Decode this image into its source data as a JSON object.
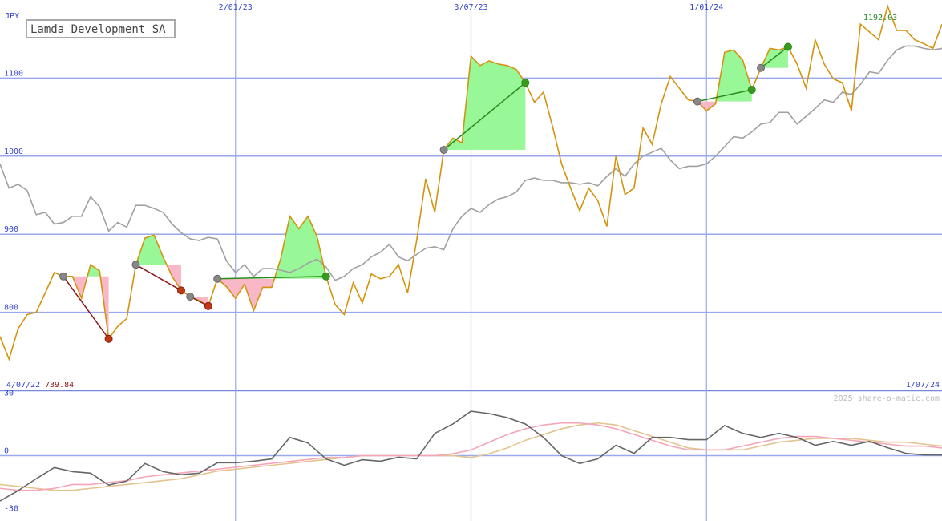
{
  "chart_data": [
    {
      "type": "line",
      "title": "Lamda Development SA",
      "y_unit": "JPY",
      "xlim": [
        0,
        104
      ],
      "xticks": [
        {
          "value": 0,
          "label": "4/07/22"
        },
        {
          "value": 26,
          "label": "2/01/23"
        },
        {
          "value": 52,
          "label": "3/07/23"
        },
        {
          "value": 78,
          "label": "1/01/24"
        },
        {
          "value": 104,
          "label": "1/07/24"
        }
      ],
      "ylim": [
        700,
        1200
      ],
      "yticks": [
        800,
        900,
        1000,
        1100
      ],
      "grid": true,
      "high": 1192.03,
      "low": 739.84,
      "series": [
        {
          "color": "#d4930f",
          "values": [
            769,
            739.84,
            779,
            797,
            800,
            825,
            851,
            846,
            846,
            818,
            861,
            853,
            766,
            782,
            792,
            861,
            895,
            899,
            871,
            846,
            828,
            820,
            815,
            808,
            843,
            833,
            818,
            836,
            802,
            832,
            832,
            869,
            923,
            907,
            923,
            897,
            846,
            810,
            797,
            838,
            812,
            849,
            843,
            846,
            861,
            825,
            892,
            971,
            928,
            1008,
            1023,
            1017,
            1128,
            1116,
            1122,
            1118,
            1116,
            1111,
            1094,
            1069,
            1082,
            1038,
            990,
            959,
            930,
            959,
            943,
            910,
            1000,
            951,
            959,
            1036,
            1015,
            1067,
            1102,
            1087,
            1072,
            1070,
            1058,
            1067,
            1133,
            1136,
            1123,
            1085,
            1113,
            1138,
            1136,
            1140,
            1118,
            1087,
            1149,
            1118,
            1099,
            1094,
            1058,
            1169,
            1159,
            1149,
            1192.03,
            1161,
            1161,
            1149,
            1144,
            1138,
            1169
          ]
        },
        {
          "color": "#a0a0a0",
          "values": [
            990,
            959,
            964,
            956,
            925,
            928,
            913,
            915,
            923,
            923,
            948,
            935,
            904,
            915,
            909,
            937,
            937,
            933,
            928,
            913,
            902,
            894,
            892,
            896,
            894,
            866,
            851,
            861,
            846,
            856,
            856,
            854,
            851,
            856,
            863,
            868,
            858,
            841,
            846,
            856,
            861,
            871,
            877,
            887,
            871,
            866,
            874,
            882,
            884,
            880,
            907,
            923,
            933,
            928,
            938,
            945,
            948,
            954,
            969,
            972,
            969,
            969,
            966,
            966,
            964,
            966,
            962,
            974,
            984,
            974,
            990,
            1000,
            1005,
            1010,
            995,
            984,
            987,
            987,
            990,
            1000,
            1012,
            1025,
            1023,
            1031,
            1041,
            1043,
            1056,
            1056,
            1041,
            1051,
            1061,
            1072,
            1069,
            1082,
            1079,
            1092,
            1108,
            1106,
            1123,
            1136,
            1141,
            1141,
            1138,
            1136,
            1138
          ]
        }
      ],
      "signals": [
        {
          "start": 7,
          "end": 12,
          "color": "#8b1a1a"
        },
        {
          "start": 15,
          "end": 20,
          "color": "#8b1a1a"
        },
        {
          "start": 21,
          "end": 23,
          "color": "#8b1a1a"
        },
        {
          "start": 24,
          "end": 36,
          "color": "#2a8a1a"
        },
        {
          "start": 49,
          "end": 58,
          "color": "#2a8a1a"
        },
        {
          "start": 77,
          "end": 83,
          "color": "#2a8a1a"
        },
        {
          "start": 84,
          "end": 87,
          "color": "#2a8a1a"
        }
      ]
    },
    {
      "type": "line",
      "source": "2025 share-o-matic.com",
      "xlim": [
        0,
        52
      ],
      "ylim": [
        -34,
        34
      ],
      "yticks": [
        -30,
        0,
        30
      ],
      "zero_line": true,
      "series": [
        {
          "color": "#666666",
          "values": [
            -23.6,
            -18.2,
            -12,
            -6.2,
            -8.3,
            -9.1,
            -15.3,
            -13.2,
            -4.1,
            -8.3,
            -9.9,
            -9.1,
            -3.7,
            -3.7,
            -2.9,
            -1.7,
            9.5,
            6.6,
            -1.7,
            -5,
            -2.1,
            -2.9,
            -0.8,
            -1.7,
            11.6,
            16.5,
            23.1,
            21.9,
            19.8,
            16.5,
            9.5,
            0,
            -4.1,
            -1.7,
            5.4,
            1.2,
            9.5,
            9.5,
            8.3,
            8.3,
            15.7,
            11.6,
            9.5,
            11.6,
            9.5,
            5.4,
            7.4,
            5.4,
            7.4,
            4.1,
            1.2,
            0.4,
            0.4
          ]
        },
        {
          "color": "#f4a6b8",
          "values": [
            -17,
            -18,
            -18,
            -17,
            -15,
            -15,
            -14,
            -13,
            -11,
            -10,
            -9,
            -8,
            -7,
            -6,
            -5,
            -4,
            -3,
            -2,
            -1,
            -1,
            0,
            0,
            0,
            0,
            0,
            1,
            3,
            7,
            11,
            14,
            16,
            17,
            17,
            16,
            14,
            11,
            8,
            5,
            3,
            3,
            3,
            5,
            7,
            9,
            10,
            10,
            9,
            8,
            7,
            6,
            5,
            5,
            4
          ]
        },
        {
          "color": "#e2c48e",
          "values": [
            -15,
            -16,
            -17,
            -18,
            -18,
            -17,
            -16,
            -15,
            -14,
            -13,
            -12,
            -10,
            -8,
            -7,
            -6,
            -5,
            -4,
            -3,
            -2,
            -1,
            0,
            0,
            0,
            0,
            0,
            0,
            -1,
            1,
            4,
            8,
            11,
            14,
            16,
            17,
            16,
            13,
            10,
            7,
            4,
            3,
            3,
            3,
            5,
            7,
            8,
            9,
            9,
            9,
            8,
            7,
            7,
            6,
            5
          ]
        }
      ]
    }
  ]
}
